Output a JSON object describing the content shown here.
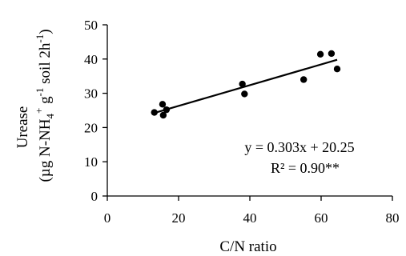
{
  "chart_data": {
    "type": "scatter",
    "title": "",
    "xlabel": "C/N ratio",
    "ylabel_line1": "Urease",
    "ylabel_line2": {
      "open": "(µg N-NH",
      "sub1": "4",
      "sup1": "+",
      "mid": " g",
      "sup2": "-1",
      "tail": " soil 2h",
      "sup3": "-1",
      "close": ")"
    },
    "xlim": [
      0,
      80
    ],
    "ylim": [
      0,
      50
    ],
    "x_ticks": [
      0,
      20,
      40,
      60,
      80
    ],
    "y_ticks": [
      0,
      10,
      20,
      30,
      40,
      50
    ],
    "grid": false,
    "points": [
      {
        "x": 13.2,
        "y": 24.4
      },
      {
        "x": 15.5,
        "y": 26.8
      },
      {
        "x": 15.7,
        "y": 23.6
      },
      {
        "x": 16.6,
        "y": 25.2
      },
      {
        "x": 37.9,
        "y": 32.7
      },
      {
        "x": 38.5,
        "y": 29.8
      },
      {
        "x": 55.1,
        "y": 34.0
      },
      {
        "x": 59.8,
        "y": 41.4
      },
      {
        "x": 62.9,
        "y": 41.6
      },
      {
        "x": 64.5,
        "y": 37.1
      }
    ],
    "trendline": {
      "slope": 0.303,
      "intercept": 20.25,
      "x_range": [
        13.2,
        64.5
      ]
    },
    "equation": "y = 0.303x + 20.25",
    "r_squared": "R² = 0.90**"
  }
}
